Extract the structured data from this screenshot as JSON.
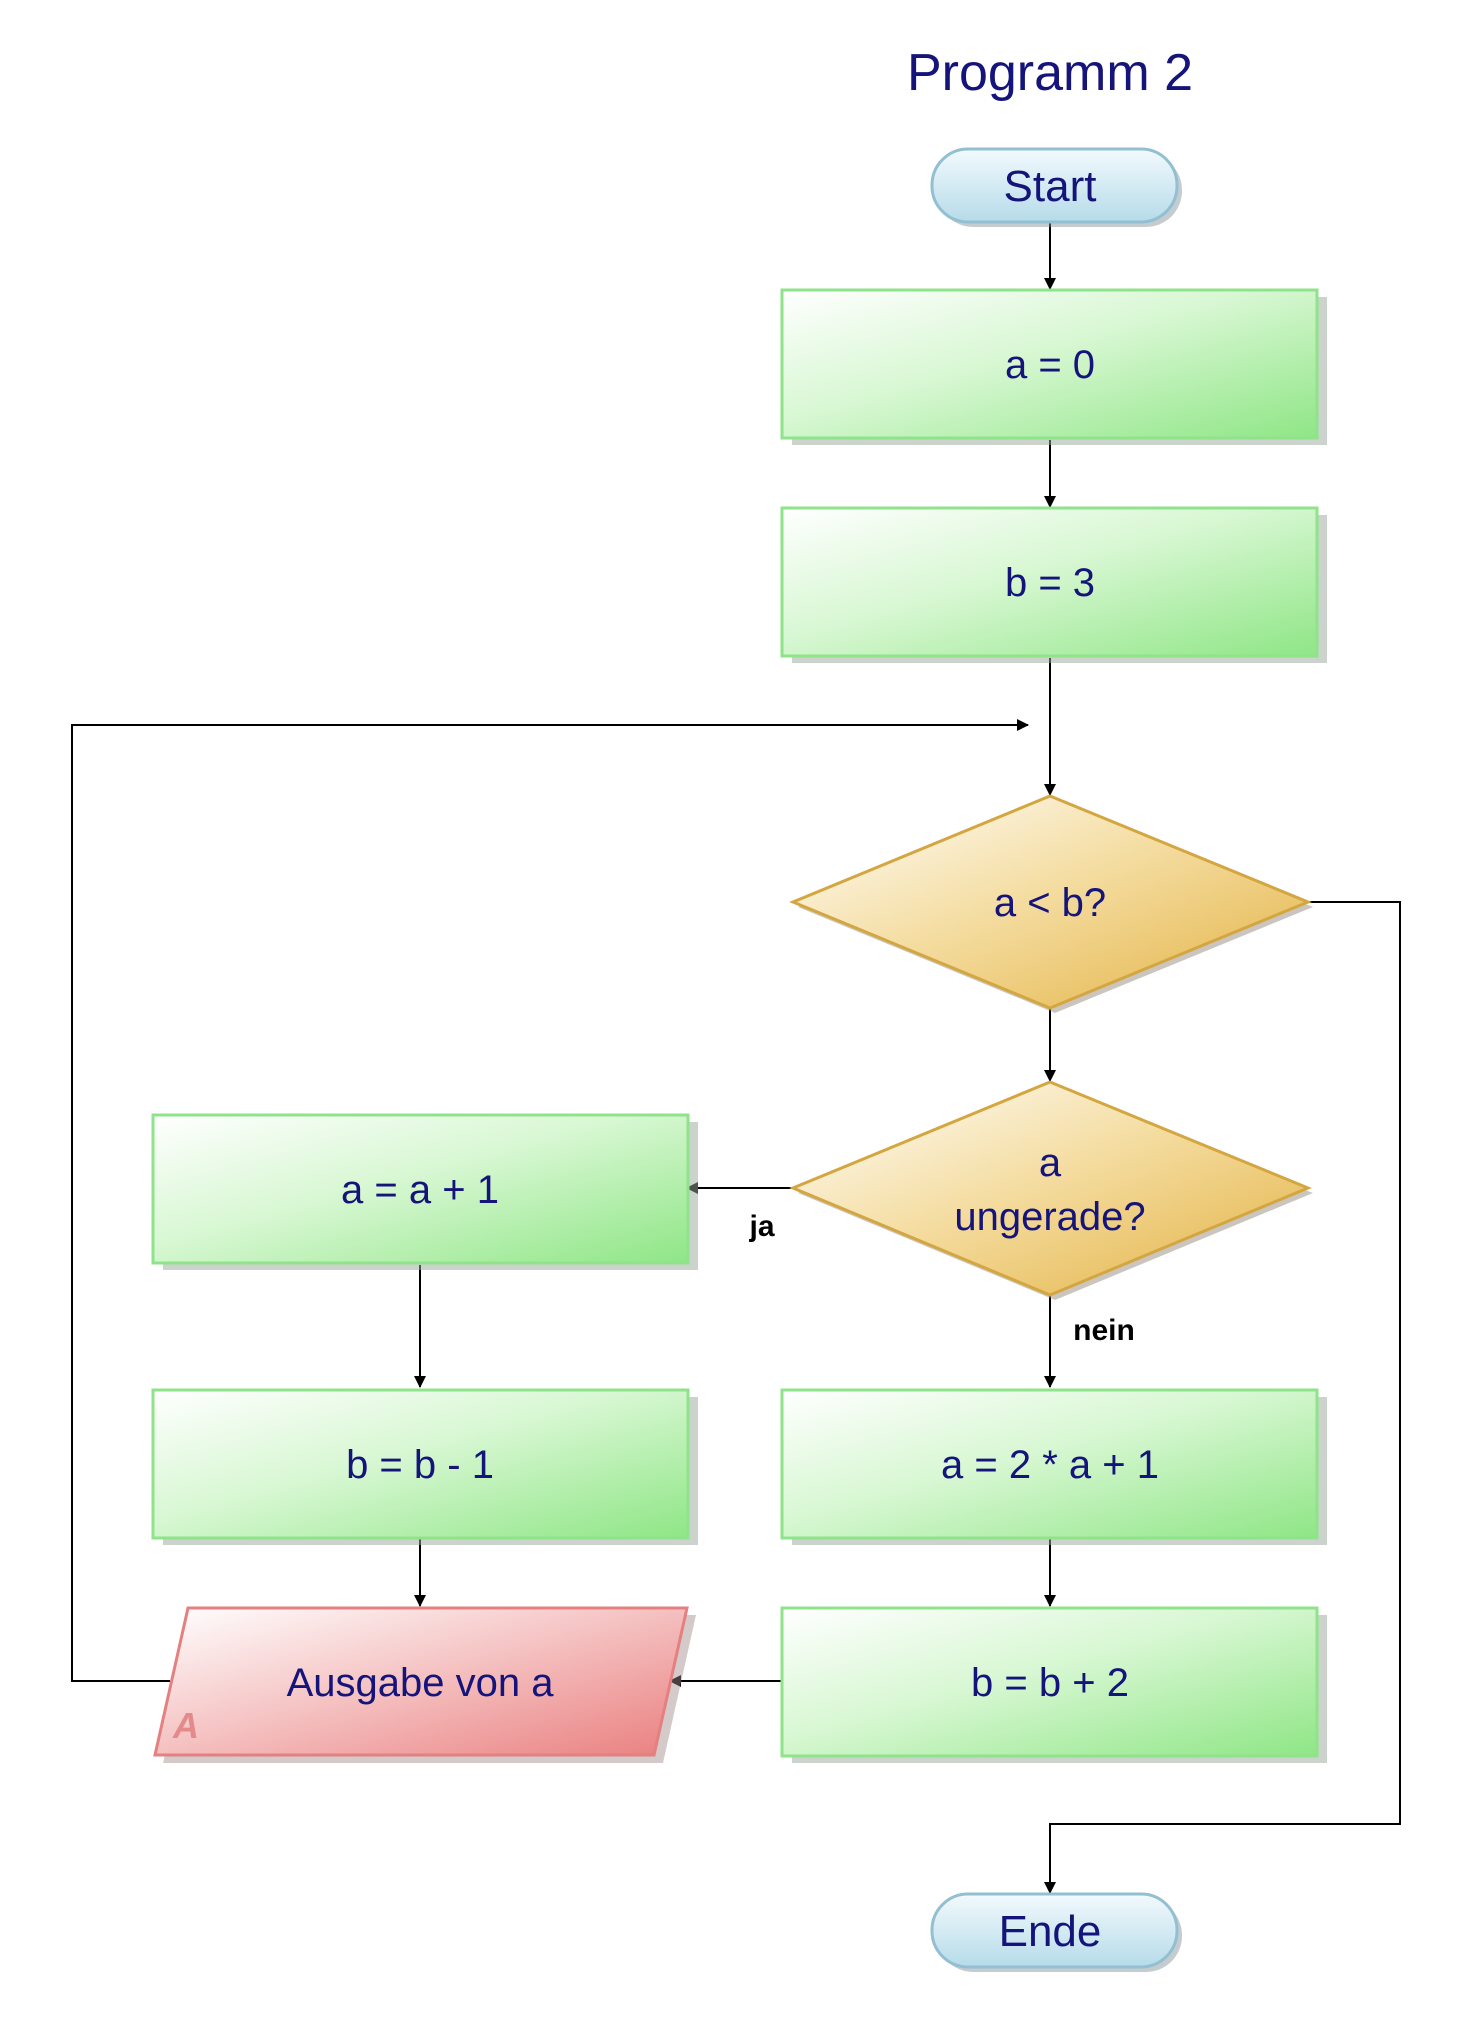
{
  "title": "Programm 2",
  "nodes": {
    "start": "Start",
    "a0": "a = 0",
    "b3": "b = 3",
    "cond1": "a < b?",
    "cond2_line1": "a",
    "cond2_line2": "ungerade?",
    "a_inc": "a = a + 1",
    "b_dec": "b = b - 1",
    "a_double": "a = 2 * a + 1",
    "b_inc": "b = b + 2",
    "output": "Ausgabe von a",
    "output_marker": "A",
    "end": "Ende"
  },
  "edges": {
    "ja": "ja",
    "nein": "nein"
  },
  "colors": {
    "title": "#14147a",
    "process_fill": "#a6ee9c",
    "process_border": "#8fe38a",
    "decision_fill": "#e7bd55",
    "decision_border": "#d4a640",
    "io_fill": "#ee8c8c",
    "io_border": "#e58080",
    "terminal_fill": "#c8e4f0",
    "terminal_border": "#93bfd2"
  }
}
